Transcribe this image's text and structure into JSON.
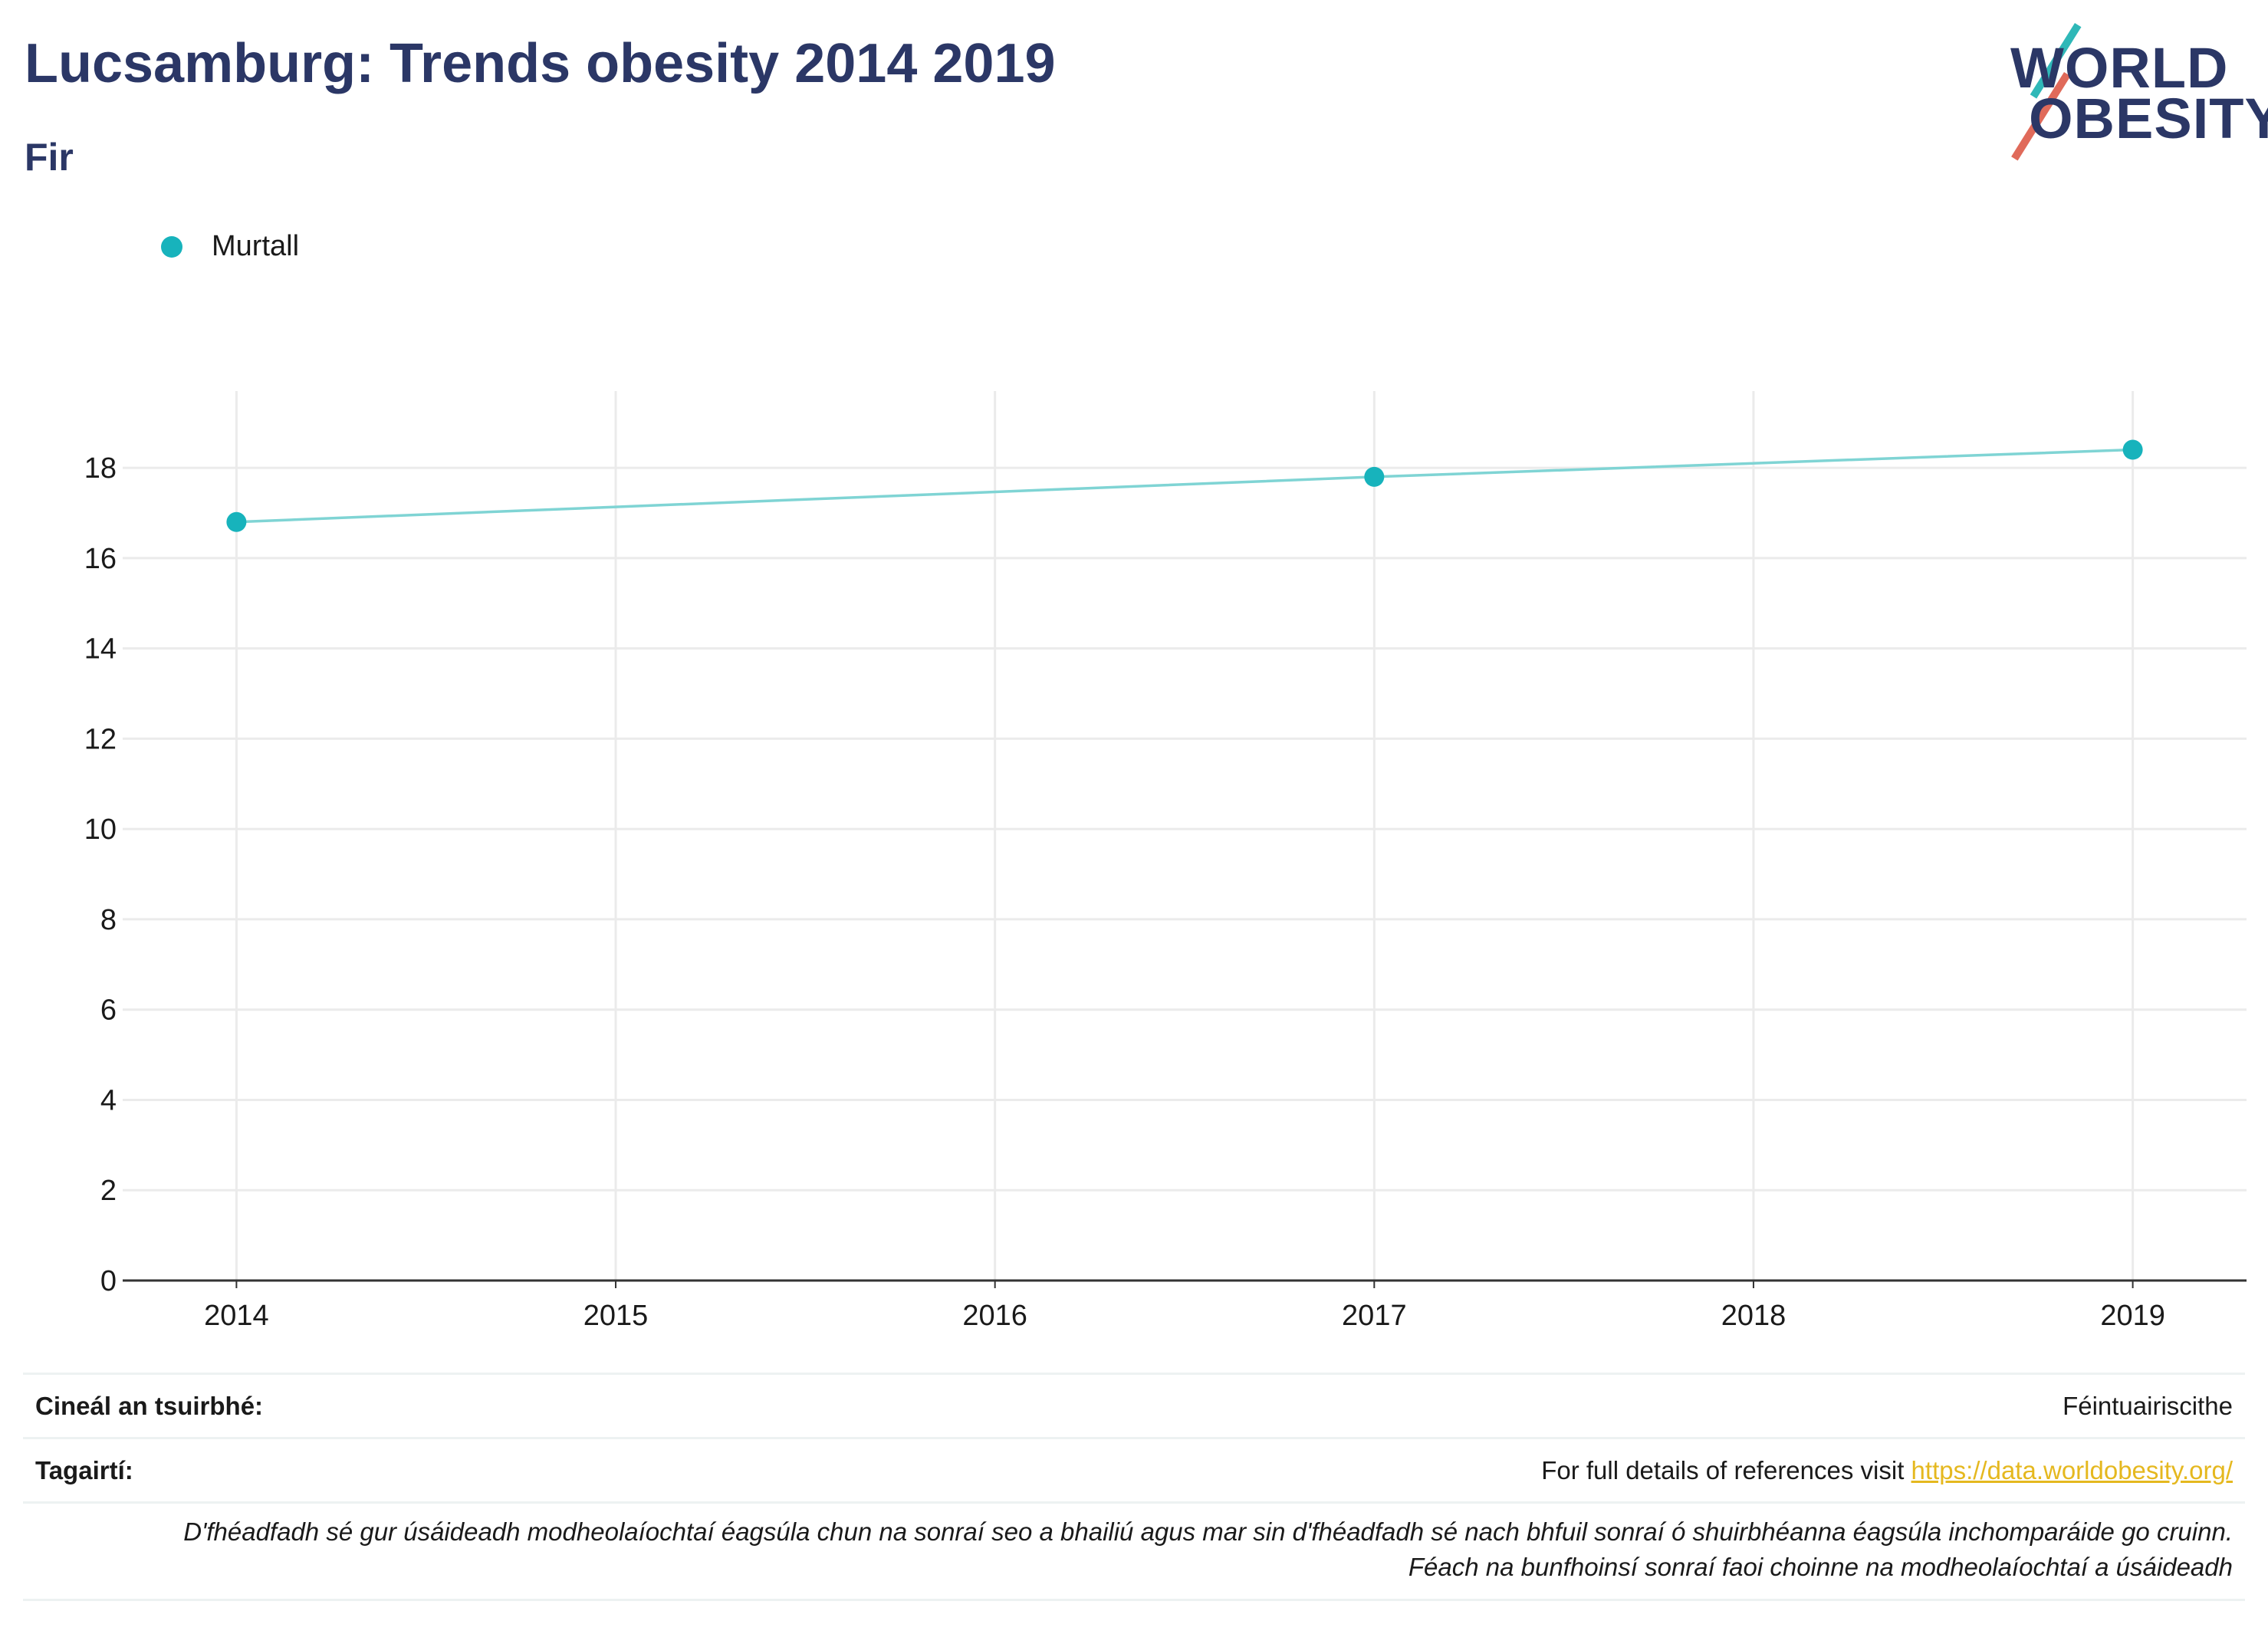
{
  "header": {
    "title": "Lucsamburg: Trends obesity 2014 2019",
    "subtitle": "Fir"
  },
  "logo": {
    "line1": "WORLD",
    "line2": "OBESITY",
    "colors": {
      "text": "#2b3766",
      "slash_top": "#2fb8b8",
      "slash_bottom": "#e06a5a"
    }
  },
  "legend": {
    "label": "Murtall",
    "color": "#17b3bc"
  },
  "chart_data": {
    "type": "line",
    "title": "",
    "xlabel": "",
    "ylabel": "",
    "x_ticks": [
      "2014",
      "2015",
      "2016",
      "2017",
      "2018",
      "2019"
    ],
    "y_ticks": [
      "0",
      "2",
      "4",
      "6",
      "8",
      "10",
      "12",
      "14",
      "16",
      "18"
    ],
    "xlim": [
      2013.7,
      2019.3
    ],
    "ylim": [
      0,
      19.7
    ],
    "grid": true,
    "legend_position": "top-left",
    "series": [
      {
        "name": "Murtall",
        "color": "#17b3bc",
        "line_color": "#7fd4d4",
        "points": [
          {
            "x": 2014,
            "y": 16.8
          },
          {
            "x": 2017,
            "y": 17.8
          },
          {
            "x": 2019,
            "y": 18.4
          }
        ]
      }
    ]
  },
  "footer": {
    "survey_type_label": "Cineál an tsuirbhé:",
    "survey_type_value": "Féintuairiscithe",
    "references_label": "Tagairtí:",
    "references_text": "For full details of references visit ",
    "references_link": "https://data.worldobesity.org/",
    "note_line1": "D'fhéadfadh sé gur úsáideadh modheolaíochtaí éagsúla chun na sonraí seo a bhailiú agus mar sin d'fhéadfadh sé nach bhfuil sonraí ó shuirbhéanna éagsúla inchomparáide go cruinn.",
    "note_line2": "Féach na bunfhoinsí sonraí faoi choinne na modheolaíochtaí a úsáideadh"
  }
}
